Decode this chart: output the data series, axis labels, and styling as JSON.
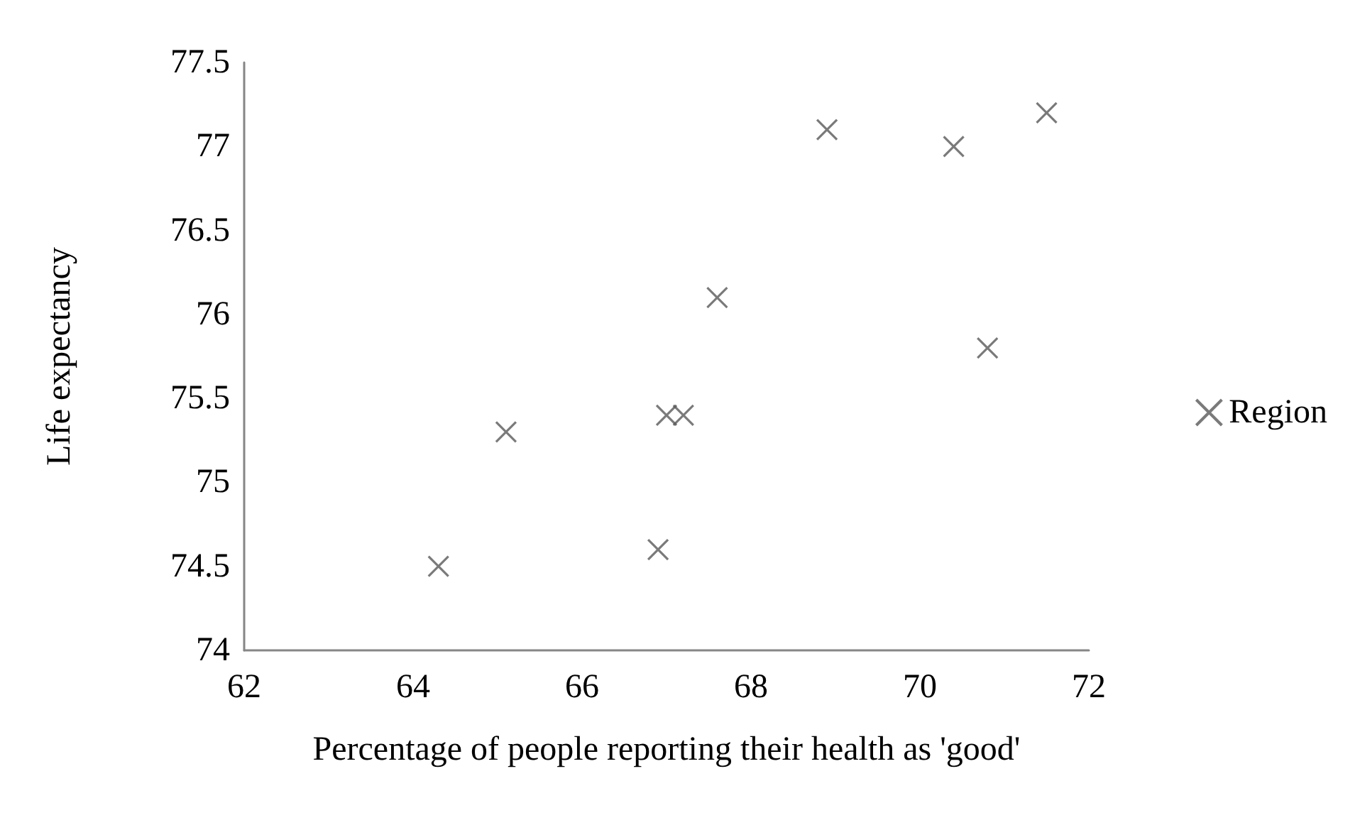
{
  "chart_data": {
    "type": "scatter",
    "xlabel": "Percentage of people reporting their health as 'good'",
    "ylabel": "Life expectancy",
    "series": [
      {
        "name": "Region",
        "color": "#595959",
        "x": [
          64.3,
          65.1,
          66.9,
          67.0,
          67.2,
          67.6,
          68.9,
          70.4,
          70.8,
          71.5
        ],
        "values": [
          74.5,
          75.3,
          74.6,
          75.4,
          75.4,
          76.1,
          77.1,
          77.0,
          75.8,
          77.2
        ]
      }
    ],
    "xlim": [
      62,
      72
    ],
    "xticks": [
      62,
      64,
      66,
      68,
      70,
      72
    ],
    "ylim": [
      74,
      77.5
    ],
    "yticks": [
      74,
      74.5,
      75,
      75.5,
      76,
      76.5,
      77,
      77.5
    ],
    "grid": false,
    "legend": "right",
    "marker": "cross"
  }
}
